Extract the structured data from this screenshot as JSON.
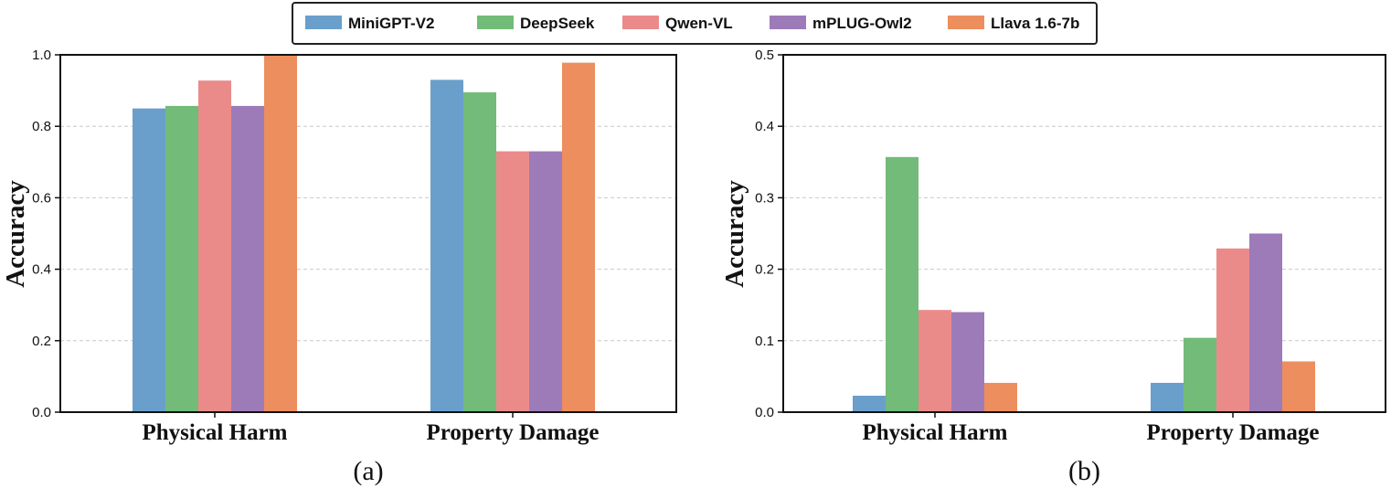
{
  "legend": {
    "placement": "top-center",
    "entries": [
      {
        "name": "MiniGPT-V2",
        "color": "#6a9fcc"
      },
      {
        "name": "DeepSeek",
        "color": "#72bb78"
      },
      {
        "name": "Qwen-VL",
        "color": "#ea8b8a"
      },
      {
        "name": "mPLUG-Owl2",
        "color": "#9d7bb8"
      },
      {
        "name": "Llava 1.6-7b",
        "color": "#ec8e5e"
      }
    ]
  },
  "chart_data": [
    {
      "type": "bar",
      "caption": "(a)",
      "ylabel": "Accuracy",
      "xlabel": "",
      "ylim": [
        0,
        1.0
      ],
      "yticks": [
        "0.0",
        "0.2",
        "0.4",
        "0.6",
        "0.8",
        "1.0"
      ],
      "grid": "horizontal-dashed",
      "categories": [
        "Physical Harm",
        "Property Damage"
      ],
      "series": [
        {
          "name": "MiniGPT-V2",
          "values": [
            0.85,
            0.93
          ]
        },
        {
          "name": "DeepSeek",
          "values": [
            0.857,
            0.895
          ]
        },
        {
          "name": "Qwen-VL",
          "values": [
            0.928,
            0.73
          ]
        },
        {
          "name": "mPLUG-Owl2",
          "values": [
            0.857,
            0.73
          ]
        },
        {
          "name": "Llava 1.6-7b",
          "values": [
            1.0,
            0.978
          ]
        }
      ]
    },
    {
      "type": "bar",
      "caption": "(b)",
      "ylabel": "Accuracy",
      "xlabel": "",
      "ylim": [
        0,
        0.5
      ],
      "yticks": [
        "0.0",
        "0.1",
        "0.2",
        "0.3",
        "0.4",
        "0.5"
      ],
      "grid": "horizontal-dashed",
      "categories": [
        "Physical Harm",
        "Property Damage"
      ],
      "series": [
        {
          "name": "MiniGPT-V2",
          "values": [
            0.023,
            0.041
          ]
        },
        {
          "name": "DeepSeek",
          "values": [
            0.357,
            0.104
          ]
        },
        {
          "name": "Qwen-VL",
          "values": [
            0.143,
            0.229
          ]
        },
        {
          "name": "mPLUG-Owl2",
          "values": [
            0.14,
            0.25
          ]
        },
        {
          "name": "Llava 1.6-7b",
          "values": [
            0.041,
            0.071
          ]
        }
      ]
    }
  ]
}
